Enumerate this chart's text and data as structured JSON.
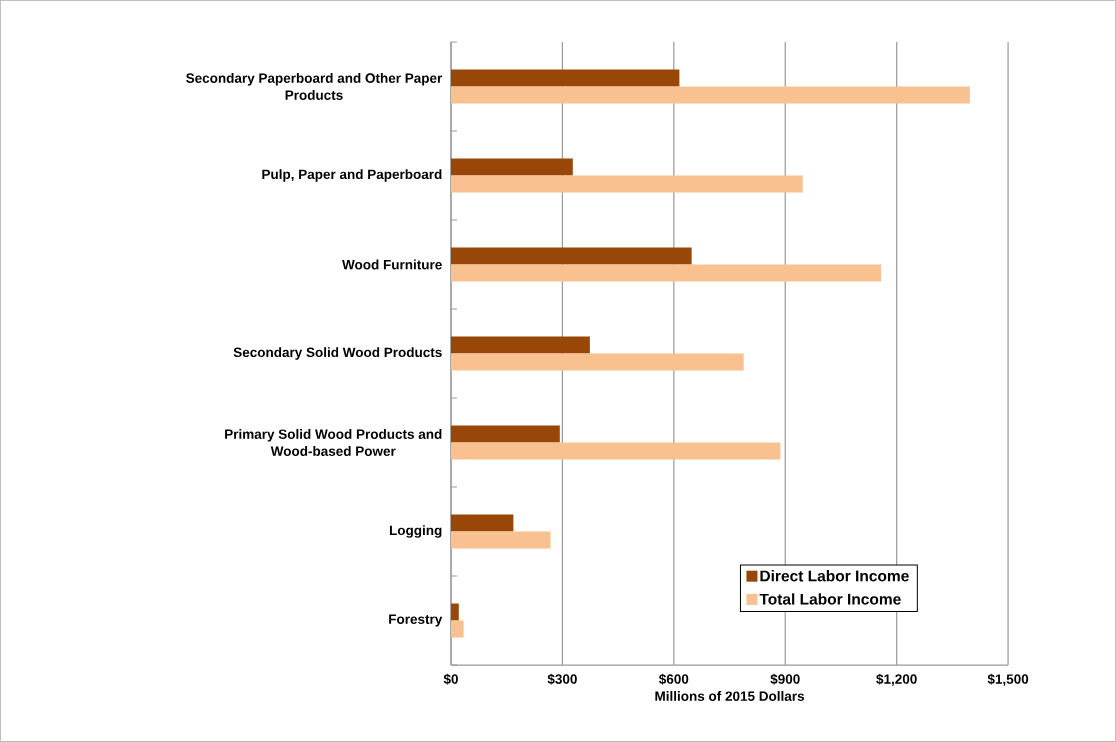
{
  "chart_data": {
    "type": "bar",
    "orientation": "horizontal",
    "xlabel": "Millions of 2015 Dollars",
    "categories": [
      "Secondary Paperboard and Other Paper Products",
      "Pulp, Paper and Paperboard",
      "Wood Furniture",
      "Secondary Solid Wood Products",
      "Primary Solid Wood Products and Wood-based Power",
      "Logging",
      "Forestry"
    ],
    "series": [
      {
        "name": "Direct Labor Income",
        "color": "#994709",
        "values": [
          615,
          328,
          648,
          374,
          293,
          168,
          21
        ]
      },
      {
        "name": "Total Labor Income",
        "color": "#f9c090",
        "values": [
          1397,
          947,
          1158,
          788,
          887,
          268,
          34
        ]
      }
    ],
    "xlim": [
      0,
      1500
    ],
    "xticks": [
      {
        "value": 0,
        "label": "$0"
      },
      {
        "value": 300,
        "label": "$300"
      },
      {
        "value": 600,
        "label": "$600"
      },
      {
        "value": 900,
        "label": "$900"
      },
      {
        "value": 1200,
        "label": "$1,200"
      },
      {
        "value": 1500,
        "label": "$1,500"
      }
    ],
    "grid": "x",
    "legend": "bottom right"
  }
}
